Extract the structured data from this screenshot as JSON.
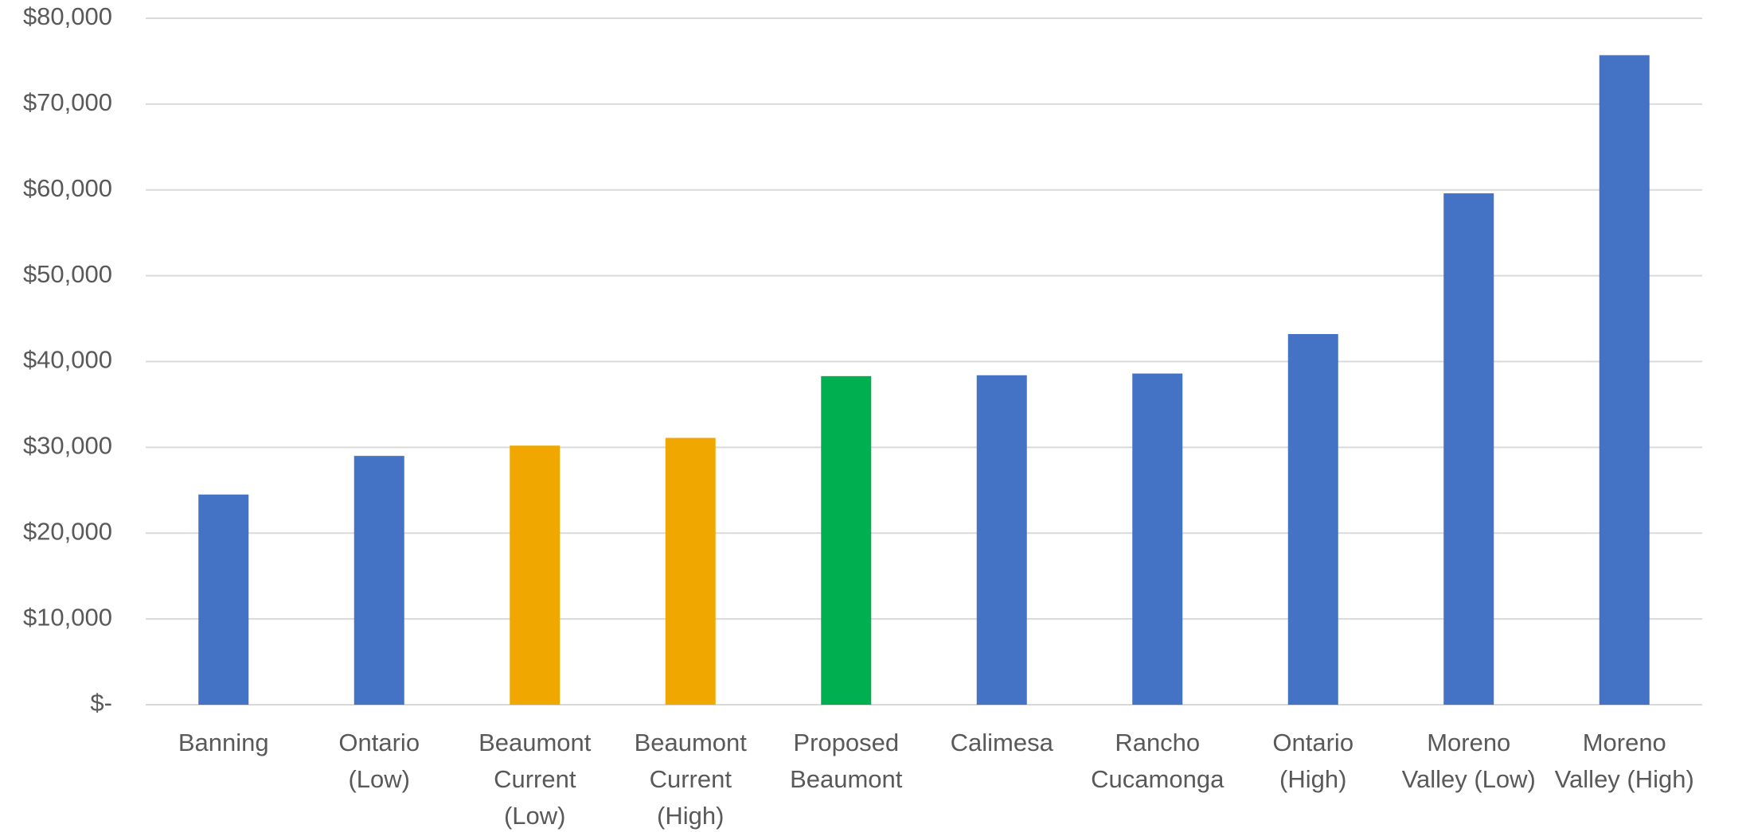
{
  "chart_data": {
    "type": "bar",
    "categories": [
      [
        "Banning"
      ],
      [
        "Ontario",
        "(Low)"
      ],
      [
        "Beaumont",
        "Current",
        "(Low)"
      ],
      [
        "Beaumont",
        "Current",
        "(High)"
      ],
      [
        "Proposed",
        "Beaumont"
      ],
      [
        "Calimesa"
      ],
      [
        "Rancho",
        "Cucamonga"
      ],
      [
        "Ontario",
        "(High)"
      ],
      [
        "Moreno",
        "Valley (Low)"
      ],
      [
        "Moreno",
        "Valley (High)"
      ]
    ],
    "values": [
      24500,
      29000,
      30200,
      31100,
      38300,
      38400,
      38600,
      43200,
      59600,
      75700
    ],
    "bar_colors": [
      "#4472C4",
      "#4472C4",
      "#F0A800",
      "#F0A800",
      "#00B050",
      "#4472C4",
      "#4472C4",
      "#4472C4",
      "#4472C4",
      "#4472C4"
    ],
    "ylim": [
      0,
      80000
    ],
    "y_ticks": [
      {
        "value": 0,
        "label": "$-"
      },
      {
        "value": 10000,
        "label": "$10,000"
      },
      {
        "value": 20000,
        "label": "$20,000"
      },
      {
        "value": 30000,
        "label": "$30,000"
      },
      {
        "value": 40000,
        "label": "$40,000"
      },
      {
        "value": 50000,
        "label": "$50,000"
      },
      {
        "value": 60000,
        "label": "$60,000"
      },
      {
        "value": 70000,
        "label": "$70,000"
      },
      {
        "value": 80000,
        "label": "$80,000"
      }
    ],
    "title": "",
    "xlabel": "",
    "ylabel": "",
    "grid": true,
    "legend": "none"
  }
}
